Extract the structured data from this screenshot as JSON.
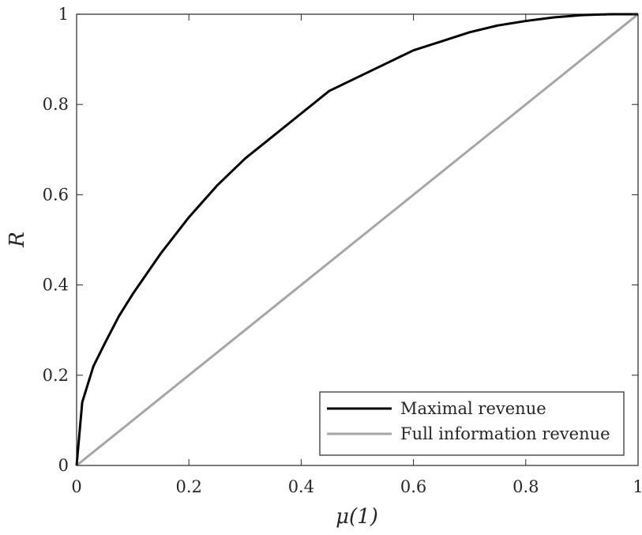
{
  "chart_data": {
    "type": "line",
    "xlabel": "μ(1)",
    "ylabel": "R",
    "xlim": [
      0,
      1
    ],
    "ylim": [
      0,
      1
    ],
    "xticks": [
      "0",
      "0.2",
      "0.4",
      "0.6",
      "0.8",
      "1"
    ],
    "yticks": [
      "0",
      "0.2",
      "0.4",
      "0.6",
      "0.8",
      "1"
    ],
    "grid": false,
    "legend_position": "bottom-right",
    "series": [
      {
        "name": "Maximal revenue",
        "color": "#000000",
        "x": [
          0,
          0.01,
          0.02,
          0.03,
          0.05,
          0.075,
          0.1,
          0.15,
          0.2,
          0.25,
          0.3,
          0.35,
          0.4,
          0.45,
          0.5,
          0.55,
          0.6,
          0.65,
          0.7,
          0.75,
          0.8,
          0.85,
          0.9,
          0.95,
          1.0
        ],
        "y": [
          0,
          0.14,
          0.18,
          0.22,
          0.27,
          0.33,
          0.38,
          0.47,
          0.55,
          0.62,
          0.68,
          0.73,
          0.78,
          0.83,
          0.86,
          0.89,
          0.92,
          0.94,
          0.96,
          0.975,
          0.985,
          0.993,
          0.998,
          1.0,
          1.0
        ]
      },
      {
        "name": "Full information revenue",
        "color": "#a6a6a6",
        "x": [
          0,
          1
        ],
        "y": [
          0,
          1
        ]
      }
    ]
  }
}
